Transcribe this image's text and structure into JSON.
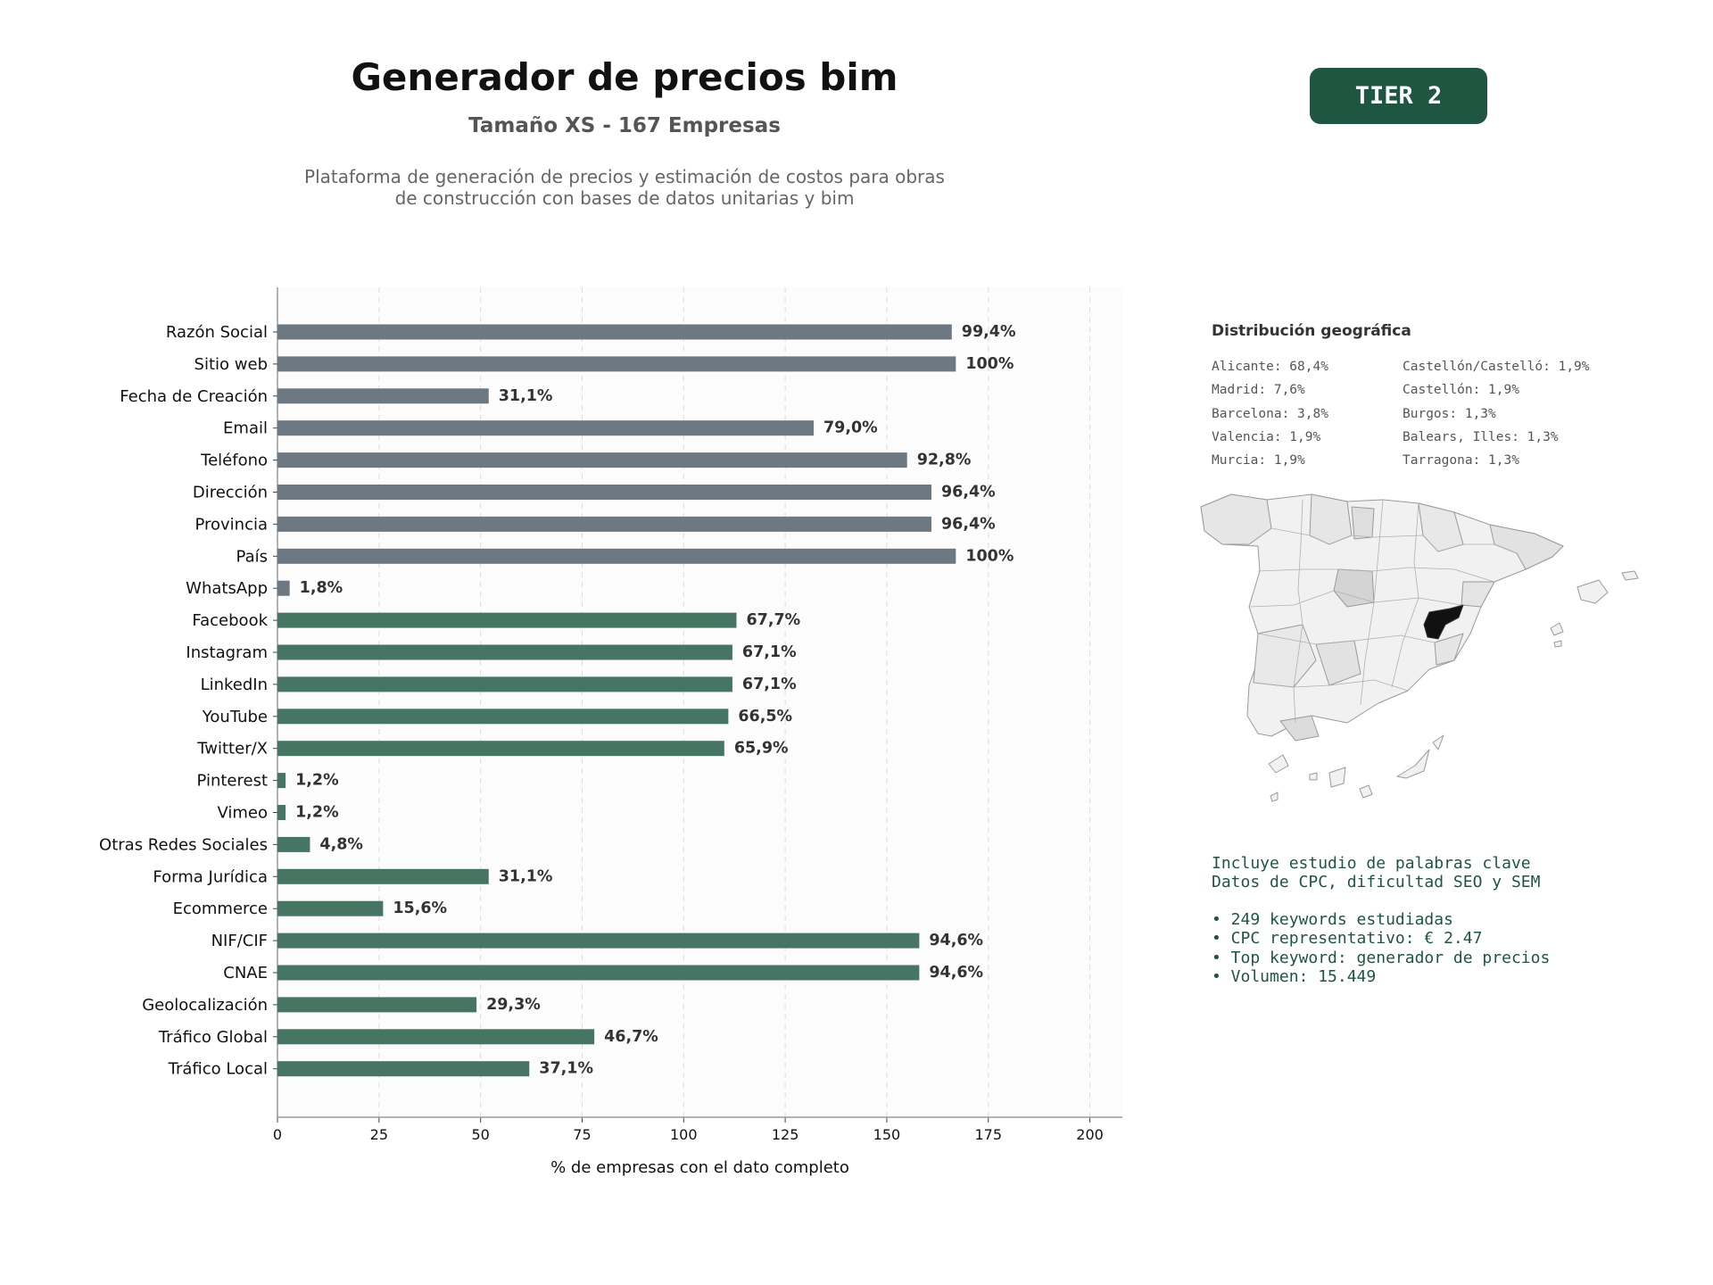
{
  "header": {
    "title": "Generador de precios bim",
    "subtitle": "Tamaño XS - 167 Empresas",
    "description_line1": "Plataforma de generación de precios y estimación de costos para obras",
    "description_line2": "de construcción con bases de datos unitarias y bim",
    "tier": "TIER 2"
  },
  "colors": {
    "gray_bar": "#6c7882",
    "green_bar": "#477563",
    "tier_bg": "#1e5641",
    "highlight_region": "#111111"
  },
  "chart_data": {
    "type": "bar",
    "orientation": "horizontal",
    "xlabel": "% de empresas con el dato completo",
    "xlim": [
      0,
      208
    ],
    "xticks": [
      0,
      25,
      50,
      75,
      100,
      125,
      150,
      175,
      200
    ],
    "grid": "vertical dashed",
    "categories": [
      "Razón Social",
      "Sitio web",
      "Fecha de Creación",
      "Email",
      "Teléfono",
      "Dirección",
      "Provincia",
      "País",
      "WhatsApp",
      "Facebook",
      "Instagram",
      "LinkedIn",
      "YouTube",
      "Twitter/X",
      "Pinterest",
      "Vimeo",
      "Otras Redes Sociales",
      "Forma Jurídica",
      "Ecommerce",
      "NIF/CIF",
      "CNAE",
      "Geolocalización",
      "Tráfico Global",
      "Tráfico Local"
    ],
    "values": [
      166,
      167,
      52,
      132,
      155,
      161,
      161,
      167,
      3,
      113,
      112,
      112,
      111,
      110,
      2,
      2,
      8,
      52,
      26,
      158,
      158,
      49,
      78,
      62
    ],
    "labels": [
      "99,4%",
      "100%",
      "31,1%",
      "79,0%",
      "92,8%",
      "96,4%",
      "96,4%",
      "100%",
      "1,8%",
      "67,7%",
      "67,1%",
      "67,1%",
      "66,5%",
      "65,9%",
      "1,2%",
      "1,2%",
      "4,8%",
      "31,1%",
      "15,6%",
      "94,6%",
      "94,6%",
      "29,3%",
      "46,7%",
      "37,1%"
    ],
    "groups": [
      "gray",
      "gray",
      "gray",
      "gray",
      "gray",
      "gray",
      "gray",
      "gray",
      "gray",
      "green",
      "green",
      "green",
      "green",
      "green",
      "green",
      "green",
      "green",
      "green",
      "green",
      "green",
      "green",
      "green",
      "green",
      "green"
    ]
  },
  "geo": {
    "title": "Distribución geográfica",
    "left": [
      "Alicante: 68,4%",
      "Madrid: 7,6%",
      "Barcelona: 3,8%",
      "Valencia: 1,9%",
      "Murcia: 1,9%"
    ],
    "right": [
      "Castellón/Castelló: 1,9%",
      "Castellón: 1,9%",
      "Burgos: 1,3%",
      "Balears, Illes: 1,3%",
      "Tarragona: 1,3%"
    ]
  },
  "keywords": {
    "line1": "Incluye estudio de palabras clave",
    "line2": "Datos de CPC, dificultad SEO y SEM",
    "bullet1": "• 249 keywords estudiadas",
    "bullet2": "• CPC representativo: € 2.47",
    "bullet3": "• Top keyword: generador de precios",
    "bullet4": "• Volumen: 15.449"
  }
}
